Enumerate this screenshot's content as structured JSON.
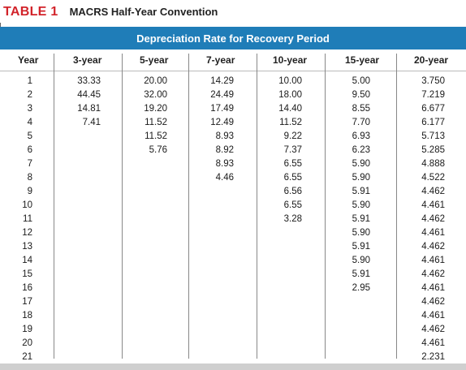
{
  "table": {
    "label": "TABLE 1",
    "title": "MACRS Half-Year Convention",
    "banner": "Depreciation Rate for Recovery Period",
    "headers": [
      "Year",
      "3-year",
      "5-year",
      "7-year",
      "10-year",
      "15-year",
      "20-year"
    ],
    "rows": [
      [
        "1",
        "33.33",
        "20.00",
        "14.29",
        "10.00",
        "5.00",
        "3.750"
      ],
      [
        "2",
        "44.45",
        "32.00",
        "24.49",
        "18.00",
        "9.50",
        "7.219"
      ],
      [
        "3",
        "14.81",
        "19.20",
        "17.49",
        "14.40",
        "8.55",
        "6.677"
      ],
      [
        "4",
        "7.41",
        "11.52",
        "12.49",
        "11.52",
        "7.70",
        "6.177"
      ],
      [
        "5",
        "",
        "11.52",
        "8.93",
        "9.22",
        "6.93",
        "5.713"
      ],
      [
        "6",
        "",
        "5.76",
        "8.92",
        "7.37",
        "6.23",
        "5.285"
      ],
      [
        "7",
        "",
        "",
        "8.93",
        "6.55",
        "5.90",
        "4.888"
      ],
      [
        "8",
        "",
        "",
        "4.46",
        "6.55",
        "5.90",
        "4.522"
      ],
      [
        "9",
        "",
        "",
        "",
        "6.56",
        "5.91",
        "4.462"
      ],
      [
        "10",
        "",
        "",
        "",
        "6.55",
        "5.90",
        "4.461"
      ],
      [
        "11",
        "",
        "",
        "",
        "3.28",
        "5.91",
        "4.462"
      ],
      [
        "12",
        "",
        "",
        "",
        "",
        "5.90",
        "4.461"
      ],
      [
        "13",
        "",
        "",
        "",
        "",
        "5.91",
        "4.462"
      ],
      [
        "14",
        "",
        "",
        "",
        "",
        "5.90",
        "4.461"
      ],
      [
        "15",
        "",
        "",
        "",
        "",
        "5.91",
        "4.462"
      ],
      [
        "16",
        "",
        "",
        "",
        "",
        "2.95",
        "4.461"
      ],
      [
        "17",
        "",
        "",
        "",
        "",
        "",
        "4.462"
      ],
      [
        "18",
        "",
        "",
        "",
        "",
        "",
        "4.461"
      ],
      [
        "19",
        "",
        "",
        "",
        "",
        "",
        "4.462"
      ],
      [
        "20",
        "",
        "",
        "",
        "",
        "",
        "4.461"
      ],
      [
        "21",
        "",
        "",
        "",
        "",
        "",
        "2.231"
      ]
    ]
  },
  "colors": {
    "label": "#d2232a",
    "banner": "#1f7db8",
    "banner_text": "#ffffff"
  }
}
